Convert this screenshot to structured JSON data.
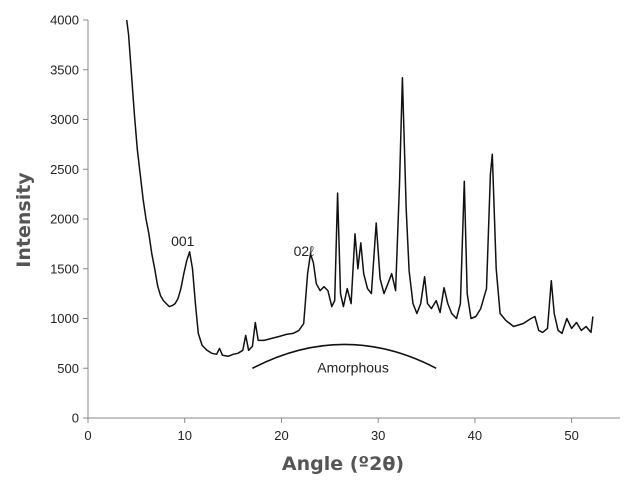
{
  "chart_data": {
    "type": "line",
    "xlabel": "Angle (º2θ)",
    "ylabel": "Intensity",
    "xlim": [
      0,
      55
    ],
    "ylim": [
      0,
      4000
    ],
    "x_ticks": [
      0,
      10,
      20,
      30,
      40,
      50
    ],
    "y_ticks": [
      0,
      500,
      1000,
      1500,
      2000,
      2500,
      3000,
      3500,
      4000
    ],
    "grid": false,
    "series": [
      {
        "points": [
          [
            4.0,
            4000
          ],
          [
            4.2,
            3850
          ],
          [
            4.5,
            3450
          ],
          [
            4.8,
            3050
          ],
          [
            5.1,
            2700
          ],
          [
            5.4,
            2450
          ],
          [
            5.7,
            2200
          ],
          [
            6.0,
            2000
          ],
          [
            6.3,
            1850
          ],
          [
            6.6,
            1650
          ],
          [
            6.9,
            1500
          ],
          [
            7.2,
            1330
          ],
          [
            7.5,
            1230
          ],
          [
            7.8,
            1180
          ],
          [
            8.1,
            1150
          ],
          [
            8.4,
            1120
          ],
          [
            8.7,
            1130
          ],
          [
            9.0,
            1150
          ],
          [
            9.3,
            1200
          ],
          [
            9.6,
            1300
          ],
          [
            9.9,
            1450
          ],
          [
            10.2,
            1580
          ],
          [
            10.5,
            1670
          ],
          [
            10.8,
            1500
          ],
          [
            11.1,
            1150
          ],
          [
            11.4,
            850
          ],
          [
            11.8,
            730
          ],
          [
            12.3,
            680
          ],
          [
            12.8,
            650
          ],
          [
            13.3,
            640
          ],
          [
            13.6,
            700
          ],
          [
            13.9,
            630
          ],
          [
            14.5,
            620
          ],
          [
            15.0,
            640
          ],
          [
            15.5,
            650
          ],
          [
            16.0,
            680
          ],
          [
            16.3,
            830
          ],
          [
            16.6,
            680
          ],
          [
            17.0,
            720
          ],
          [
            17.3,
            960
          ],
          [
            17.6,
            780
          ],
          [
            18.2,
            780
          ],
          [
            19.0,
            800
          ],
          [
            19.8,
            820
          ],
          [
            20.5,
            840
          ],
          [
            21.2,
            850
          ],
          [
            21.8,
            880
          ],
          [
            22.3,
            950
          ],
          [
            22.7,
            1450
          ],
          [
            23.0,
            1650
          ],
          [
            23.3,
            1560
          ],
          [
            23.6,
            1350
          ],
          [
            24.0,
            1280
          ],
          [
            24.4,
            1320
          ],
          [
            24.8,
            1280
          ],
          [
            25.2,
            1120
          ],
          [
            25.5,
            1180
          ],
          [
            25.8,
            2260
          ],
          [
            26.1,
            1250
          ],
          [
            26.4,
            1120
          ],
          [
            26.8,
            1300
          ],
          [
            27.2,
            1150
          ],
          [
            27.6,
            1850
          ],
          [
            27.9,
            1500
          ],
          [
            28.2,
            1760
          ],
          [
            28.5,
            1450
          ],
          [
            28.9,
            1300
          ],
          [
            29.3,
            1250
          ],
          [
            29.8,
            1960
          ],
          [
            30.2,
            1400
          ],
          [
            30.6,
            1250
          ],
          [
            31.0,
            1350
          ],
          [
            31.4,
            1450
          ],
          [
            31.8,
            1280
          ],
          [
            32.2,
            2350
          ],
          [
            32.5,
            3420
          ],
          [
            32.9,
            2100
          ],
          [
            33.2,
            1480
          ],
          [
            33.6,
            1150
          ],
          [
            34.0,
            1050
          ],
          [
            34.4,
            1150
          ],
          [
            34.8,
            1420
          ],
          [
            35.1,
            1150
          ],
          [
            35.5,
            1100
          ],
          [
            36.0,
            1180
          ],
          [
            36.4,
            1060
          ],
          [
            36.8,
            1310
          ],
          [
            37.2,
            1150
          ],
          [
            37.6,
            1050
          ],
          [
            38.1,
            1000
          ],
          [
            38.5,
            1150
          ],
          [
            38.9,
            2380
          ],
          [
            39.2,
            1250
          ],
          [
            39.6,
            1000
          ],
          [
            40.1,
            1020
          ],
          [
            40.6,
            1100
          ],
          [
            41.2,
            1300
          ],
          [
            41.6,
            2450
          ],
          [
            41.8,
            2650
          ],
          [
            42.2,
            1500
          ],
          [
            42.6,
            1050
          ],
          [
            43.2,
            980
          ],
          [
            44.0,
            920
          ],
          [
            45.0,
            950
          ],
          [
            45.8,
            1000
          ],
          [
            46.2,
            1020
          ],
          [
            46.6,
            880
          ],
          [
            47.0,
            860
          ],
          [
            47.5,
            900
          ],
          [
            47.9,
            1380
          ],
          [
            48.2,
            1050
          ],
          [
            48.6,
            880
          ],
          [
            49.0,
            850
          ],
          [
            49.5,
            1000
          ],
          [
            50.0,
            900
          ],
          [
            50.5,
            960
          ],
          [
            51.0,
            880
          ],
          [
            51.5,
            920
          ],
          [
            52.0,
            860
          ],
          [
            52.2,
            1020
          ]
        ]
      }
    ],
    "annotations": [
      {
        "text": "001",
        "x": 9.8,
        "y": 1730
      },
      {
        "text": "02ℓ",
        "x": 22.3,
        "y": 1630
      },
      {
        "text": "Amorphous",
        "x": 27.4,
        "y": 455
      }
    ],
    "amorphous_curve": {
      "x_start": 17,
      "x_peak": 26.5,
      "x_end": 36,
      "y_base": 500,
      "y_peak": 740
    }
  }
}
